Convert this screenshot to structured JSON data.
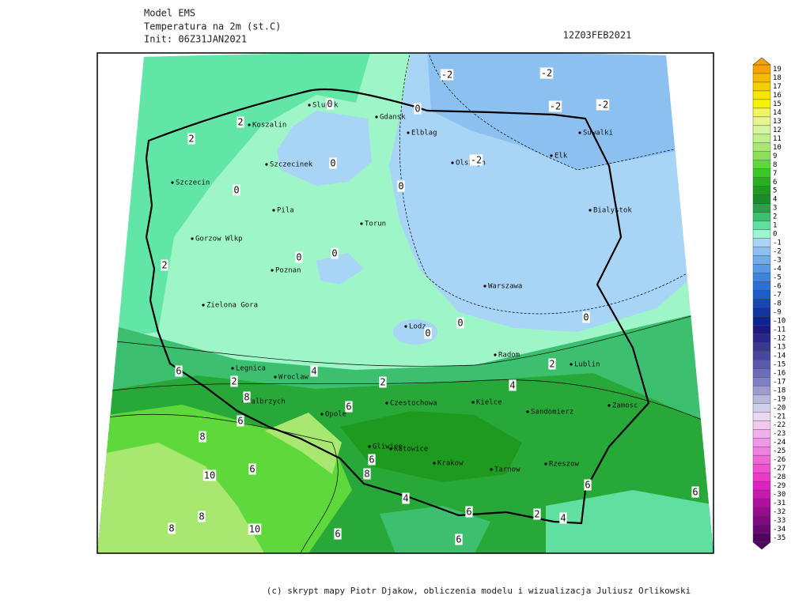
{
  "header": {
    "model": "Model EMS",
    "variable": "Temperatura na 2m (st.C)",
    "init": "Init: 06Z31JAN2021",
    "valid": "12Z03FEB2021"
  },
  "map": {
    "cities": [
      "Slupsk",
      "Gdansk",
      "Koszalin",
      "Elblag",
      "Suwalki",
      "Szczecinek",
      "Olsztyn",
      "Elk",
      "Szczecin",
      "Bialystok",
      "Pila",
      "Torun",
      "Gorzow Wlkp",
      "Poznan",
      "Warszawa",
      "Zielona Gora",
      "Lodz",
      "Radom",
      "Lublin",
      "Legnica",
      "Wroclaw",
      "Czestochowa",
      "Kielce",
      "Walbrzych",
      "Opole",
      "Zamosc",
      "Sandomierz",
      "Gliwice",
      "Katowice",
      "Krakow",
      "Tarnow",
      "Rzeszow"
    ],
    "contour_labels": [
      "-2",
      "-2",
      "-2",
      "-2",
      "0",
      "0",
      "2",
      "2",
      "0",
      "-2",
      "0",
      "0",
      "0",
      "0",
      "2",
      "0",
      "0",
      "0",
      "2",
      "6",
      "4",
      "2",
      "2",
      "4",
      "8",
      "6",
      "6",
      "8",
      "6",
      "6",
      "8",
      "10",
      "6",
      "4",
      "6",
      "6",
      "2",
      "4",
      "8",
      "8",
      "10",
      "6",
      "6"
    ]
  },
  "colorbar": [
    {
      "value": 19,
      "color": "#f5a300"
    },
    {
      "value": 18,
      "color": "#f5bb00"
    },
    {
      "value": 17,
      "color": "#f5d000"
    },
    {
      "value": 16,
      "color": "#f5e600"
    },
    {
      "value": 15,
      "color": "#f5f500"
    },
    {
      "value": 14,
      "color": "#f0f560"
    },
    {
      "value": 13,
      "color": "#e6f590"
    },
    {
      "value": 12,
      "color": "#d6f5a0"
    },
    {
      "value": 11,
      "color": "#c0f08a"
    },
    {
      "value": 10,
      "color": "#a8e870"
    },
    {
      "value": 9,
      "color": "#8ee05a"
    },
    {
      "value": 8,
      "color": "#5fd83c"
    },
    {
      "value": 7,
      "color": "#3cc82a"
    },
    {
      "value": 6,
      "color": "#28b020"
    },
    {
      "value": 5,
      "color": "#1e9a1e"
    },
    {
      "value": 4,
      "color": "#1a8a2a"
    },
    {
      "value": 3,
      "color": "#2aa048"
    },
    {
      "value": 2,
      "color": "#3cc070"
    },
    {
      "value": 1,
      "color": "#60e0a0"
    },
    {
      "value": 0,
      "color": "#a0f5d0"
    },
    {
      "value": -1,
      "color": "#a8d4f5"
    },
    {
      "value": -2,
      "color": "#8cc0f0"
    },
    {
      "value": -3,
      "color": "#70acea"
    },
    {
      "value": -4,
      "color": "#5898e5"
    },
    {
      "value": -5,
      "color": "#3c84e0"
    },
    {
      "value": -6,
      "color": "#2870d8"
    },
    {
      "value": -7,
      "color": "#1e5cc8"
    },
    {
      "value": -8,
      "color": "#1848b4"
    },
    {
      "value": -9,
      "color": "#1236a0"
    },
    {
      "value": -10,
      "color": "#0c2490"
    },
    {
      "value": -11,
      "color": "#1a1a80"
    },
    {
      "value": -12,
      "color": "#28288a"
    },
    {
      "value": -13,
      "color": "#383894"
    },
    {
      "value": -14,
      "color": "#4848a0"
    },
    {
      "value": -15,
      "color": "#5a5aac"
    },
    {
      "value": -16,
      "color": "#6c6cb8"
    },
    {
      "value": -17,
      "color": "#8080c4"
    },
    {
      "value": -18,
      "color": "#9c9cd0"
    },
    {
      "value": -19,
      "color": "#b8b8dc"
    },
    {
      "value": -20,
      "color": "#d0d0ea"
    },
    {
      "value": -21,
      "color": "#e8d8f0"
    },
    {
      "value": -22,
      "color": "#f0c8f0"
    },
    {
      "value": -23,
      "color": "#f0b0ec"
    },
    {
      "value": -24,
      "color": "#f098e8"
    },
    {
      "value": -25,
      "color": "#f080e0"
    },
    {
      "value": -26,
      "color": "#f068d8"
    },
    {
      "value": -27,
      "color": "#f050d0"
    },
    {
      "value": -28,
      "color": "#f038c8"
    },
    {
      "value": -29,
      "color": "#e020c0"
    },
    {
      "value": -30,
      "color": "#c818b0"
    },
    {
      "value": -31,
      "color": "#b010a0"
    },
    {
      "value": -32,
      "color": "#980c90"
    },
    {
      "value": -33,
      "color": "#800880"
    },
    {
      "value": -34,
      "color": "#680870"
    },
    {
      "value": -35,
      "color": "#500460"
    }
  ],
  "footer": "(c) skrypt mapy Piotr Djakow, obliczenia modelu i wizualizacja Juliusz Orlikowski"
}
